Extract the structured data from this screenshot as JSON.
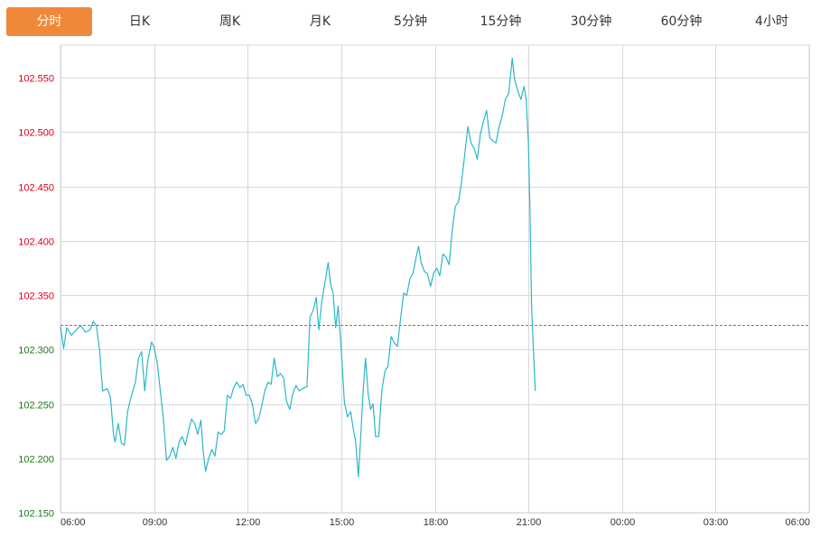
{
  "tabs": [
    {
      "label": "分时",
      "active": true
    },
    {
      "label": "日K",
      "active": false
    },
    {
      "label": "周K",
      "active": false
    },
    {
      "label": "月K",
      "active": false
    },
    {
      "label": "5分钟",
      "active": false
    },
    {
      "label": "15分钟",
      "active": false
    },
    {
      "label": "30分钟",
      "active": false
    },
    {
      "label": "60分钟",
      "active": false
    },
    {
      "label": "4小时",
      "active": false
    }
  ],
  "colors": {
    "active_tab": "#f0883a",
    "line": "#2bb7c7",
    "reference_line": "#e0502a",
    "up_label": "#d9001b",
    "down_label": "#1a7a1a",
    "grid": "#d8d8d8"
  },
  "chart_data": {
    "type": "line",
    "title": "",
    "xlabel": "",
    "ylabel": "",
    "ylim": [
      102.15,
      102.58
    ],
    "reference_value": 102.323,
    "y_ticks": [
      "102.150",
      "102.200",
      "102.250",
      "102.300",
      "102.350",
      "102.400",
      "102.450",
      "102.500",
      "102.550"
    ],
    "x_ticks": [
      "06:00",
      "09:00",
      "12:00",
      "15:00",
      "18:00",
      "21:00",
      "00:00",
      "03:00",
      "06:00"
    ],
    "x_range_hours": [
      0,
      24
    ],
    "grid": true,
    "series": [
      {
        "values": [
          [
            0.0,
            102.321
          ],
          [
            0.1,
            102.301
          ],
          [
            0.2,
            102.32
          ],
          [
            0.35,
            102.313
          ],
          [
            0.5,
            102.318
          ],
          [
            0.65,
            102.322
          ],
          [
            0.8,
            102.316
          ],
          [
            0.95,
            102.318
          ],
          [
            1.05,
            102.326
          ],
          [
            1.15,
            102.322
          ],
          [
            1.25,
            102.3
          ],
          [
            1.35,
            102.262
          ],
          [
            1.5,
            102.264
          ],
          [
            1.6,
            102.256
          ],
          [
            1.7,
            102.222
          ],
          [
            1.75,
            102.215
          ],
          [
            1.85,
            102.232
          ],
          [
            1.95,
            102.214
          ],
          [
            2.05,
            102.212
          ],
          [
            2.15,
            102.243
          ],
          [
            2.25,
            102.255
          ],
          [
            2.4,
            102.27
          ],
          [
            2.5,
            102.292
          ],
          [
            2.6,
            102.298
          ],
          [
            2.7,
            102.262
          ],
          [
            2.8,
            102.29
          ],
          [
            2.92,
            102.307
          ],
          [
            3.0,
            102.302
          ],
          [
            3.1,
            102.288
          ],
          [
            3.2,
            102.262
          ],
          [
            3.3,
            102.236
          ],
          [
            3.4,
            102.198
          ],
          [
            3.5,
            102.202
          ],
          [
            3.6,
            102.21
          ],
          [
            3.7,
            102.2
          ],
          [
            3.8,
            102.215
          ],
          [
            3.9,
            102.22
          ],
          [
            4.0,
            102.212
          ],
          [
            4.1,
            102.225
          ],
          [
            4.2,
            102.236
          ],
          [
            4.3,
            102.232
          ],
          [
            4.4,
            102.222
          ],
          [
            4.5,
            102.235
          ],
          [
            4.58,
            102.205
          ],
          [
            4.65,
            102.188
          ],
          [
            4.75,
            102.2
          ],
          [
            4.85,
            102.208
          ],
          [
            4.95,
            102.202
          ],
          [
            5.05,
            102.224
          ],
          [
            5.15,
            102.222
          ],
          [
            5.25,
            102.225
          ],
          [
            5.35,
            102.258
          ],
          [
            5.45,
            102.255
          ],
          [
            5.55,
            102.265
          ],
          [
            5.65,
            102.27
          ],
          [
            5.75,
            102.265
          ],
          [
            5.85,
            102.268
          ],
          [
            5.95,
            102.258
          ],
          [
            6.05,
            102.258
          ],
          [
            6.15,
            102.25
          ],
          [
            6.25,
            102.232
          ],
          [
            6.35,
            102.236
          ],
          [
            6.45,
            102.248
          ],
          [
            6.55,
            102.262
          ],
          [
            6.65,
            102.27
          ],
          [
            6.75,
            102.268
          ],
          [
            6.85,
            102.292
          ],
          [
            6.95,
            102.275
          ],
          [
            7.05,
            102.278
          ],
          [
            7.15,
            102.274
          ],
          [
            7.25,
            102.252
          ],
          [
            7.35,
            102.245
          ],
          [
            7.45,
            102.26
          ],
          [
            7.55,
            102.267
          ],
          [
            7.65,
            102.262
          ],
          [
            7.75,
            102.264
          ],
          [
            7.9,
            102.266
          ],
          [
            8.0,
            102.33
          ],
          [
            8.1,
            102.336
          ],
          [
            8.2,
            102.348
          ],
          [
            8.28,
            102.318
          ],
          [
            8.38,
            102.345
          ],
          [
            8.48,
            102.362
          ],
          [
            8.58,
            102.38
          ],
          [
            8.66,
            102.36
          ],
          [
            8.74,
            102.352
          ],
          [
            8.82,
            102.32
          ],
          [
            8.9,
            102.34
          ],
          [
            9.0,
            102.3
          ],
          [
            9.1,
            102.252
          ],
          [
            9.2,
            102.238
          ],
          [
            9.3,
            102.243
          ],
          [
            9.38,
            102.228
          ],
          [
            9.46,
            102.215
          ],
          [
            9.55,
            102.183
          ],
          [
            9.62,
            102.218
          ],
          [
            9.7,
            102.262
          ],
          [
            9.78,
            102.292
          ],
          [
            9.86,
            102.26
          ],
          [
            9.94,
            102.245
          ],
          [
            10.02,
            102.25
          ],
          [
            10.1,
            102.22
          ],
          [
            10.2,
            102.22
          ],
          [
            10.3,
            102.262
          ],
          [
            10.4,
            102.28
          ],
          [
            10.5,
            102.285
          ],
          [
            10.6,
            102.312
          ],
          [
            10.7,
            102.306
          ],
          [
            10.8,
            102.303
          ],
          [
            10.9,
            102.328
          ],
          [
            11.0,
            102.352
          ],
          [
            11.1,
            102.35
          ],
          [
            11.2,
            102.365
          ],
          [
            11.3,
            102.37
          ],
          [
            11.4,
            102.385
          ],
          [
            11.48,
            102.395
          ],
          [
            11.56,
            102.38
          ],
          [
            11.66,
            102.372
          ],
          [
            11.76,
            102.37
          ],
          [
            11.86,
            102.358
          ],
          [
            11.96,
            102.37
          ],
          [
            12.06,
            102.375
          ],
          [
            12.16,
            102.368
          ],
          [
            12.26,
            102.388
          ],
          [
            12.36,
            102.385
          ],
          [
            12.46,
            102.378
          ],
          [
            12.56,
            102.41
          ],
          [
            12.66,
            102.432
          ],
          [
            12.76,
            102.436
          ],
          [
            12.86,
            102.455
          ],
          [
            12.96,
            102.48
          ],
          [
            13.06,
            102.505
          ],
          [
            13.16,
            102.49
          ],
          [
            13.26,
            102.485
          ],
          [
            13.36,
            102.475
          ],
          [
            13.46,
            102.498
          ],
          [
            13.56,
            102.51
          ],
          [
            13.66,
            102.52
          ],
          [
            13.76,
            102.495
          ],
          [
            13.86,
            102.492
          ],
          [
            13.96,
            102.49
          ],
          [
            14.06,
            102.505
          ],
          [
            14.16,
            102.515
          ],
          [
            14.26,
            102.53
          ],
          [
            14.36,
            102.535
          ],
          [
            14.42,
            102.55
          ],
          [
            14.48,
            102.568
          ],
          [
            14.56,
            102.548
          ],
          [
            14.66,
            102.538
          ],
          [
            14.76,
            102.53
          ],
          [
            14.86,
            102.542
          ],
          [
            14.93,
            102.53
          ],
          [
            15.0,
            102.49
          ],
          [
            15.05,
            102.425
          ],
          [
            15.1,
            102.34
          ],
          [
            15.16,
            102.3
          ],
          [
            15.22,
            102.262
          ]
        ]
      }
    ]
  }
}
